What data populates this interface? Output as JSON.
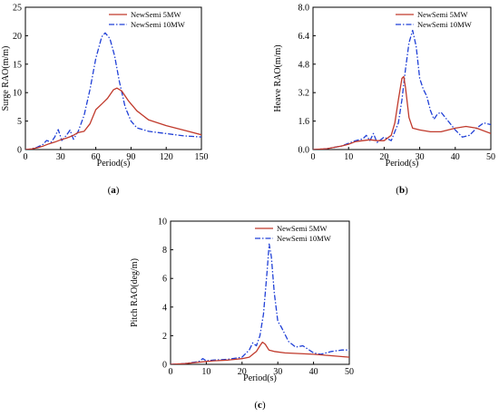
{
  "colors": {
    "series_5mw": "#c0392b",
    "series_10mw": "#1f3fd6"
  },
  "chart_data": [
    {
      "type": "line",
      "panel_label": "a",
      "xlabel": "Period(s)",
      "ylabel": "Surge RAO(m/m)",
      "xlim": [
        0,
        150
      ],
      "ylim": [
        0,
        25
      ],
      "xticks": [
        0,
        30,
        60,
        90,
        120,
        150
      ],
      "yticks": [
        0,
        5,
        10,
        15,
        20,
        25
      ],
      "legend_position": "top-right",
      "series": [
        {
          "name": "NewSemi 5MW",
          "style": "solid",
          "x": [
            0,
            5,
            10,
            15,
            20,
            25,
            30,
            35,
            40,
            45,
            50,
            55,
            60,
            65,
            70,
            75,
            78,
            82,
            88,
            95,
            105,
            120,
            135,
            150
          ],
          "y": [
            0,
            0.1,
            0.3,
            0.6,
            1.0,
            1.3,
            1.7,
            2.0,
            2.4,
            3.0,
            3.2,
            4.5,
            7.0,
            8.0,
            9.0,
            10.5,
            10.8,
            10.3,
            8.5,
            6.8,
            5.2,
            4.2,
            3.4,
            2.6
          ]
        },
        {
          "name": "NewSemi 10MW",
          "style": "dashdot",
          "x": [
            0,
            5,
            10,
            15,
            18,
            22,
            25,
            28,
            31,
            35,
            38,
            41,
            45,
            50,
            55,
            60,
            65,
            68,
            72,
            76,
            80,
            85,
            90,
            95,
            105,
            120,
            135,
            150
          ],
          "y": [
            0,
            0.1,
            0.4,
            0.9,
            1.6,
            1.3,
            2.2,
            3.5,
            1.6,
            2.5,
            3.4,
            1.8,
            3.2,
            6.0,
            10.5,
            16.0,
            19.8,
            20.5,
            19.5,
            16.5,
            12.0,
            7.5,
            5.0,
            3.8,
            3.2,
            2.8,
            2.4,
            2.2
          ]
        }
      ]
    },
    {
      "type": "line",
      "panel_label": "b",
      "xlabel": "Period(s)",
      "ylabel": "Heave RAO(m/m)",
      "xlim": [
        0,
        50
      ],
      "ylim": [
        0,
        8
      ],
      "xticks": [
        0,
        10,
        20,
        30,
        40,
        50
      ],
      "yticks": [
        0,
        1.6,
        3.2,
        4.8,
        6.4,
        8.0
      ],
      "yticklabels": [
        "0.0",
        "1.6",
        "3.2",
        "4.8",
        "6.4",
        "8.0"
      ],
      "legend_position": "top-right",
      "series": [
        {
          "name": "NewSemi 5MW",
          "style": "solid",
          "x": [
            0,
            4,
            8,
            10,
            12,
            14,
            16,
            18,
            20,
            22,
            23,
            24,
            25,
            25.5,
            26,
            27,
            28,
            30,
            33,
            36,
            40,
            43,
            46,
            50
          ],
          "y": [
            0,
            0.05,
            0.2,
            0.3,
            0.45,
            0.5,
            0.55,
            0.5,
            0.5,
            0.8,
            1.5,
            2.8,
            4.0,
            4.1,
            3.5,
            1.8,
            1.2,
            1.1,
            1.0,
            1.0,
            1.2,
            1.3,
            1.2,
            0.9
          ]
        },
        {
          "name": "NewSemi 10MW",
          "style": "dashdot",
          "x": [
            0,
            4,
            8,
            10,
            12,
            14,
            15,
            16,
            17,
            18,
            20,
            22,
            24,
            25,
            26,
            27,
            28,
            29,
            30,
            31,
            32,
            33,
            34,
            35,
            36,
            38,
            40,
            42,
            44,
            46,
            48,
            50
          ],
          "y": [
            0,
            0.05,
            0.2,
            0.35,
            0.5,
            0.6,
            0.8,
            0.5,
            0.9,
            0.4,
            0.7,
            0.5,
            1.5,
            2.8,
            4.5,
            6.0,
            6.7,
            5.8,
            4.0,
            3.4,
            3.0,
            2.2,
            1.7,
            2.0,
            2.1,
            1.6,
            1.1,
            0.7,
            0.8,
            1.2,
            1.5,
            1.4
          ]
        }
      ]
    },
    {
      "type": "line",
      "panel_label": "c",
      "xlabel": "Period(s)",
      "ylabel": "Pitch RAO(deg/m)",
      "xlim": [
        0,
        50
      ],
      "ylim": [
        0,
        10
      ],
      "xticks": [
        0,
        10,
        20,
        30,
        40,
        50
      ],
      "yticks": [
        0,
        2,
        4,
        6,
        8,
        10
      ],
      "legend_position": "top-right",
      "series": [
        {
          "name": "NewSemi 5MW",
          "style": "solid",
          "x": [
            0,
            4,
            8,
            10,
            12,
            16,
            20,
            22,
            24,
            25,
            25.7,
            26.5,
            27.5,
            29,
            32,
            36,
            40,
            45,
            50
          ],
          "y": [
            0,
            0.05,
            0.15,
            0.2,
            0.25,
            0.3,
            0.4,
            0.5,
            0.9,
            1.3,
            1.55,
            1.4,
            1.0,
            0.9,
            0.8,
            0.75,
            0.7,
            0.6,
            0.5
          ]
        },
        {
          "name": "NewSemi 10MW",
          "style": "dashdot",
          "x": [
            0,
            4,
            8,
            9,
            10,
            12,
            16,
            20,
            22,
            23,
            24,
            25,
            26,
            27,
            27.6,
            28.2,
            29,
            30,
            31,
            33,
            35,
            37,
            40,
            42,
            45,
            48,
            50
          ],
          "y": [
            0,
            0.05,
            0.2,
            0.4,
            0.25,
            0.3,
            0.35,
            0.5,
            1.0,
            1.5,
            1.3,
            2.0,
            3.5,
            6.5,
            8.4,
            7.5,
            5.0,
            3.0,
            2.6,
            1.6,
            1.2,
            1.3,
            0.8,
            0.7,
            0.9,
            1.0,
            1.0
          ]
        }
      ]
    }
  ]
}
